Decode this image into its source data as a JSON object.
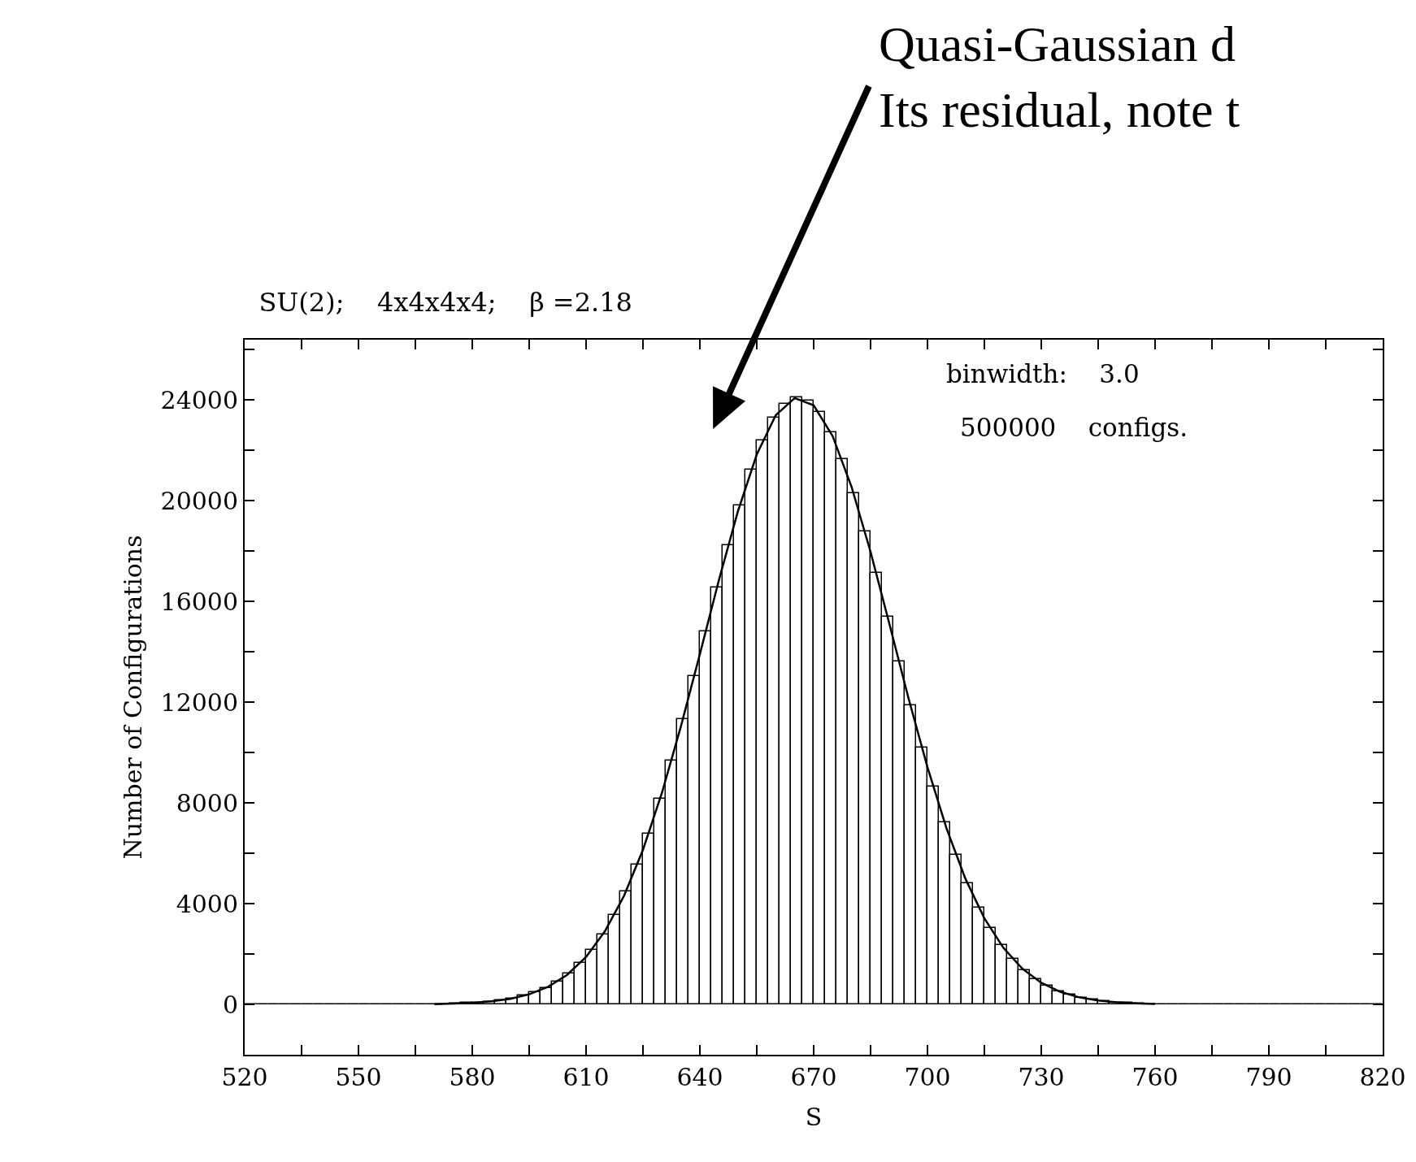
{
  "chart_data": {
    "type": "histogram",
    "title": "SU(2);    4x4x4x4;    β =2.18",
    "xlabel": "S",
    "ylabel": "Number of Configurations",
    "annotations": [
      "binwidth:    3.0",
      "500000    configs.",
      "Quasi-Gaussian d\nIts residual, note t"
    ],
    "series": [
      {
        "color": "#000000",
        "bins": [
          520,
          523,
          526,
          529,
          532,
          535,
          538,
          541,
          544,
          547,
          550,
          553,
          556,
          559,
          562,
          565,
          568,
          571,
          574,
          577,
          580,
          583,
          586,
          589,
          592,
          595,
          598,
          601,
          604,
          607,
          610,
          613,
          616,
          619,
          622,
          625,
          628,
          631,
          634,
          637,
          640,
          643,
          646,
          649,
          652,
          655,
          658,
          661,
          664,
          667,
          670,
          673,
          676,
          679,
          682,
          685,
          688,
          691,
          694,
          697,
          700,
          703,
          706,
          709,
          712,
          715,
          718,
          721,
          724,
          727,
          730,
          733,
          736,
          739,
          742,
          745,
          748,
          751,
          754,
          757,
          760,
          763,
          766,
          769,
          772,
          775,
          778,
          781,
          784,
          787,
          790,
          793,
          796,
          799,
          802,
          805,
          808,
          811,
          814,
          817,
          820
        ],
        "values": [
          0,
          0,
          0,
          0,
          0,
          0,
          0,
          0,
          0,
          0,
          0,
          0,
          0,
          0,
          0,
          0,
          0,
          0,
          30,
          50,
          70,
          110,
          160,
          230,
          340,
          480,
          660,
          910,
          1230,
          1640,
          2150,
          2790,
          3560,
          4480,
          5550,
          6780,
          8160,
          9680,
          11320,
          13030,
          14800,
          16550,
          18250,
          19830,
          21230,
          22390,
          23290,
          23860,
          24100,
          23980,
          23520,
          22730,
          21640,
          20310,
          18790,
          17130,
          15380,
          13620,
          11880,
          10210,
          8650,
          7220,
          5940,
          4820,
          3850,
          3030,
          2350,
          1800,
          1360,
          1010,
          740,
          530,
          380,
          260,
          180,
          120,
          80,
          60,
          40,
          0,
          0,
          0,
          0,
          0,
          0,
          0,
          0,
          0,
          0,
          0,
          0,
          0,
          0,
          0,
          0,
          0,
          0,
          0,
          0,
          0
        ]
      },
      {
        "type": "line",
        "color": "#000000",
        "x": [
          570,
          575,
          580,
          585,
          590,
          595,
          600,
          605,
          610,
          615,
          620,
          625,
          630,
          635,
          640,
          645,
          650,
          655,
          660,
          665,
          670,
          675,
          680,
          685,
          690,
          695,
          700,
          705,
          710,
          715,
          720,
          725,
          730,
          735,
          740,
          745,
          750,
          755,
          760
        ],
        "values": [
          10,
          30,
          60,
          120,
          220,
          400,
          700,
          1170,
          1880,
          2910,
          4310,
          6140,
          8400,
          11040,
          13910,
          16840,
          19570,
          21840,
          23400,
          24080,
          23790,
          22570,
          20550,
          17970,
          15090,
          12160,
          9420,
          7000,
          4990,
          3420,
          2250,
          1420,
          860,
          500,
          280,
          150,
          80,
          40,
          20
        ]
      }
    ],
    "xlim": [
      520,
      820
    ],
    "xticks": [
      520,
      {
        "value": 535,
        "label": null
      },
      550,
      {
        "value": 565,
        "label": null
      },
      580,
      {
        "value": 595,
        "label": null
      },
      610,
      {
        "value": 625,
        "label": null
      },
      640,
      {
        "value": 655,
        "label": null
      },
      670,
      {
        "value": 685,
        "label": null
      },
      700,
      {
        "value": 715,
        "label": null
      },
      730,
      {
        "value": 745,
        "label": null
      },
      760,
      {
        "value": 775,
        "label": null
      },
      790,
      {
        "value": 805,
        "label": null
      },
      820
    ],
    "ylim": [
      -2000,
      26400
    ],
    "yticks": [
      {
        "value": -2000,
        "label": null
      },
      0,
      {
        "value": 2000,
        "label": null
      },
      4000,
      {
        "value": 6000,
        "label": null
      },
      8000,
      {
        "value": 10000,
        "label": null
      },
      12000,
      {
        "value": 14000,
        "label": null
      },
      16000,
      {
        "value": 18000,
        "label": null
      },
      20000,
      {
        "value": 22000,
        "label": null
      },
      24000,
      {
        "value": 26000,
        "label": null
      }
    ],
    "tick_labels": true
  }
}
